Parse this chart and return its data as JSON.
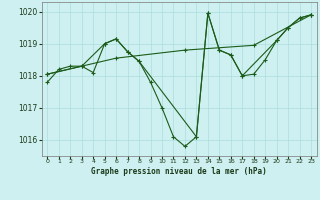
{
  "title": "Graphe pression niveau de la mer (hPa)",
  "bg_color": "#cff0f0",
  "grid_color": "#aadddd",
  "line_color": "#1a5c1a",
  "xlim": [
    -0.5,
    23.5
  ],
  "ylim": [
    1015.5,
    1020.3
  ],
  "yticks": [
    1016,
    1017,
    1018,
    1019,
    1020
  ],
  "xticks": [
    0,
    1,
    2,
    3,
    4,
    5,
    6,
    7,
    8,
    9,
    10,
    11,
    12,
    13,
    14,
    15,
    16,
    17,
    18,
    19,
    20,
    21,
    22,
    23
  ],
  "series1_x": [
    0,
    1,
    2,
    3,
    4,
    5,
    6,
    7,
    8,
    9,
    10,
    11,
    12,
    13,
    14,
    15,
    16,
    17,
    18,
    19,
    20,
    21,
    22,
    23
  ],
  "series1_y": [
    1017.8,
    1018.2,
    1018.3,
    1018.3,
    1018.1,
    1019.0,
    1019.15,
    1018.75,
    1018.45,
    1017.8,
    1017.0,
    1016.1,
    1015.8,
    1016.1,
    1019.95,
    1018.8,
    1018.65,
    1018.0,
    1018.05,
    1018.5,
    1019.1,
    1019.5,
    1019.8,
    1019.9
  ],
  "series2_x": [
    0,
    6,
    12,
    18,
    23
  ],
  "series2_y": [
    1018.05,
    1018.55,
    1018.8,
    1018.95,
    1019.9
  ],
  "series3_x": [
    0,
    3,
    5,
    6,
    7,
    8,
    13,
    14,
    15,
    16,
    17,
    20,
    21,
    22,
    23
  ],
  "series3_y": [
    1018.05,
    1018.3,
    1019.0,
    1019.15,
    1018.75,
    1018.45,
    1016.1,
    1019.95,
    1018.8,
    1018.65,
    1018.0,
    1019.1,
    1019.5,
    1019.8,
    1019.9
  ]
}
